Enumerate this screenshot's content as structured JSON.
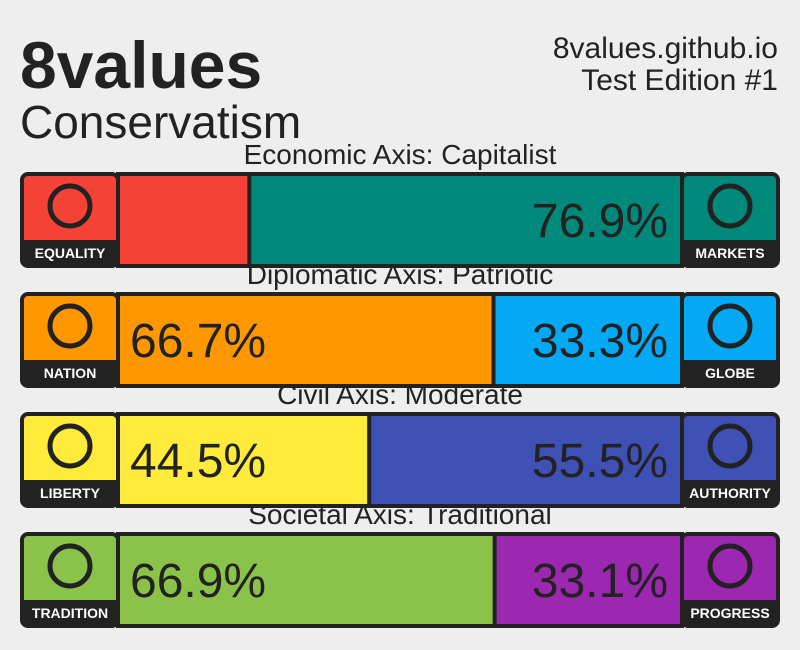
{
  "header": {
    "title": "8values",
    "ideology": "Conservatism",
    "site": "8values.github.io",
    "edition": "Test Edition #1"
  },
  "axes": [
    {
      "title": "Economic Axis: Capitalist",
      "labels": [
        "EQUALITY",
        "MARKETS"
      ],
      "colors": [
        "#f44336",
        "#00897b"
      ],
      "values": [
        23.1,
        76.9
      ],
      "value_labels": [
        null,
        "76.9%"
      ]
    },
    {
      "title": "Diplomatic Axis: Patriotic",
      "labels": [
        "NATION",
        "GLOBE"
      ],
      "colors": [
        "#ff9800",
        "#03a9f4"
      ],
      "values": [
        66.7,
        33.3
      ],
      "value_labels": [
        "66.7%",
        "33.3%"
      ]
    },
    {
      "title": "Civil Axis: Moderate",
      "labels": [
        "LIBERTY",
        "AUTHORITY"
      ],
      "colors": [
        "#ffeb3b",
        "#3f51b5"
      ],
      "values": [
        44.5,
        55.5
      ],
      "value_labels": [
        "44.5%",
        "55.5%"
      ]
    },
    {
      "title": "Societal Axis: Traditional",
      "labels": [
        "TRADITION",
        "PROGRESS"
      ],
      "colors": [
        "#8bc34a",
        "#9c27b0"
      ],
      "values": [
        66.9,
        33.1
      ],
      "value_labels": [
        "66.9%",
        "33.1%"
      ]
    }
  ]
}
